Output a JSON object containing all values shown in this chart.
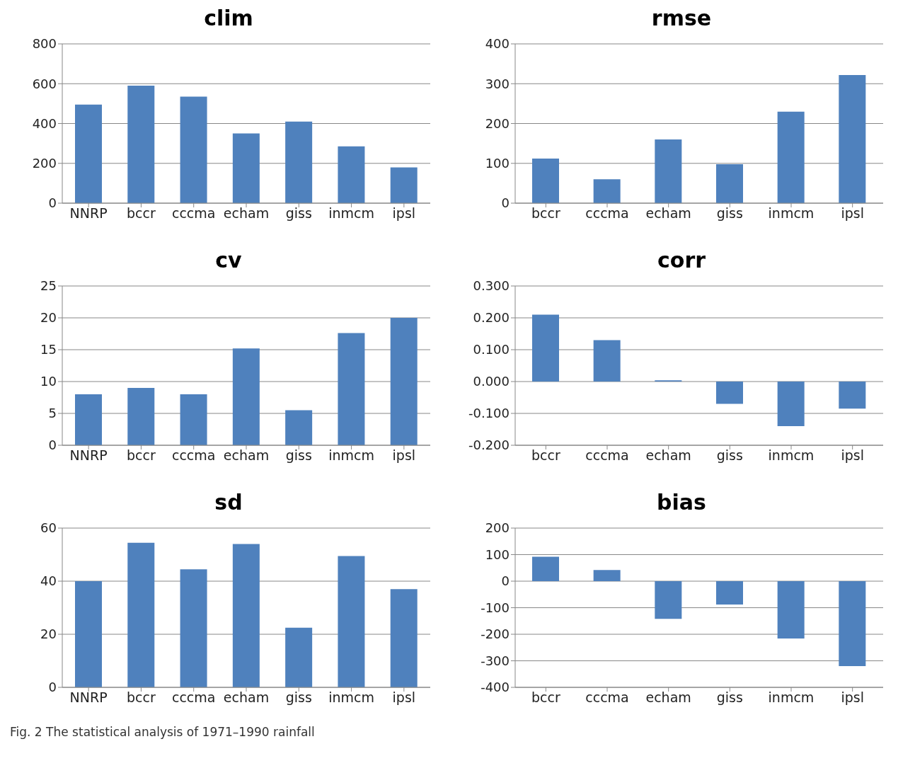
{
  "chart_data": [
    {
      "type": "bar",
      "title": "clim",
      "categories": [
        "NNRP",
        "bccr",
        "cccma",
        "echam",
        "giss",
        "inmcm",
        "ipsl"
      ],
      "values": [
        495,
        590,
        535,
        350,
        410,
        285,
        180
      ],
      "color": "#4f81bd",
      "ylim": [
        0,
        800
      ],
      "yticks": [
        0,
        200,
        400,
        600,
        800
      ],
      "grid": "y"
    },
    {
      "type": "bar",
      "title": "rmse",
      "categories": [
        "bccr",
        "cccma",
        "echam",
        "giss",
        "inmcm",
        "ipsl"
      ],
      "values": [
        112,
        60,
        160,
        98,
        230,
        322
      ],
      "color": "#4f81bd",
      "ylim": [
        0,
        400
      ],
      "yticks": [
        0,
        100,
        200,
        300,
        400
      ],
      "grid": "y"
    },
    {
      "type": "bar",
      "title": "cv",
      "categories": [
        "NNRP",
        "bccr",
        "cccma",
        "echam",
        "giss",
        "inmcm",
        "ipsl"
      ],
      "values": [
        8,
        9,
        8,
        15.2,
        5.5,
        17.6,
        20
      ],
      "color": "#4f81bd",
      "ylim": [
        0,
        25
      ],
      "yticks": [
        0,
        5,
        10,
        15,
        20,
        25
      ],
      "grid": "y"
    },
    {
      "type": "bar",
      "title": "corr",
      "categories": [
        "bccr",
        "cccma",
        "echam",
        "giss",
        "inmcm",
        "ipsl"
      ],
      "values": [
        0.21,
        0.13,
        0.004,
        -0.07,
        -0.14,
        -0.085
      ],
      "color": "#4f81bd",
      "ylim": [
        -0.2,
        0.3
      ],
      "yticks": [
        {
          "value": -0.2,
          "label": "-0.200"
        },
        {
          "value": -0.1,
          "label": "-0.100"
        },
        {
          "value": 0,
          "label": "0.000"
        },
        {
          "value": 0.1,
          "label": "0.100"
        },
        {
          "value": 0.2,
          "label": "0.200"
        },
        {
          "value": 0.3,
          "label": "0.300"
        }
      ],
      "grid": "y"
    },
    {
      "type": "bar",
      "title": "sd",
      "categories": [
        "NNRP",
        "bccr",
        "cccma",
        "echam",
        "giss",
        "inmcm",
        "ipsl"
      ],
      "values": [
        40,
        54.5,
        44.5,
        54,
        22.5,
        49.5,
        37
      ],
      "color": "#4f81bd",
      "ylim": [
        0,
        60
      ],
      "yticks": [
        0,
        20,
        40,
        60
      ],
      "grid": "y",
      "annotations": [
        "Fig. 2  The statistical analysis of 1971–1990 rainfall"
      ]
    },
    {
      "type": "bar",
      "title": "bias",
      "categories": [
        "bccr",
        "cccma",
        "echam",
        "giss",
        "inmcm",
        "ipsl"
      ],
      "values": [
        92,
        42,
        -142,
        -88,
        -216,
        -320
      ],
      "color": "#4f81bd",
      "ylim": [
        -400,
        200
      ],
      "yticks": [
        -400,
        -300,
        -200,
        -100,
        0,
        100,
        200
      ],
      "grid": "y"
    }
  ]
}
